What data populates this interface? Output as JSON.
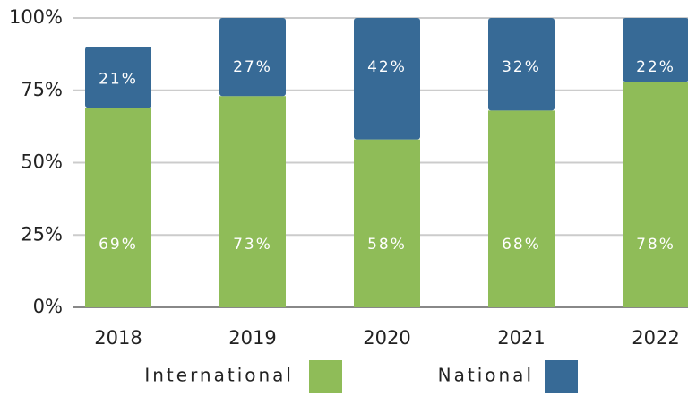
{
  "chart_data": {
    "type": "stacked_bar",
    "categories": [
      "2018",
      "2019",
      "2020",
      "2021",
      "2022"
    ],
    "series": [
      {
        "name": "International",
        "color": "#8fbc58",
        "values": [
          69,
          73,
          58,
          68,
          78
        ],
        "value_labels": [
          "69%",
          "73%",
          "58%",
          "68%",
          "78%"
        ]
      },
      {
        "name": "National",
        "color": "#376a96",
        "values": [
          21,
          27,
          42,
          32,
          22
        ],
        "value_labels": [
          "21%",
          "27%",
          "42%",
          "32%",
          "22%"
        ]
      }
    ],
    "ylim": [
      0,
      100
    ],
    "yticks": [
      {
        "value": 0,
        "label": "0%"
      },
      {
        "value": 25,
        "label": "25%"
      },
      {
        "value": 50,
        "label": "50%"
      },
      {
        "value": 75,
        "label": "75%"
      },
      {
        "value": 100,
        "label": "100%"
      }
    ],
    "grid": true,
    "legend": "bottom"
  }
}
